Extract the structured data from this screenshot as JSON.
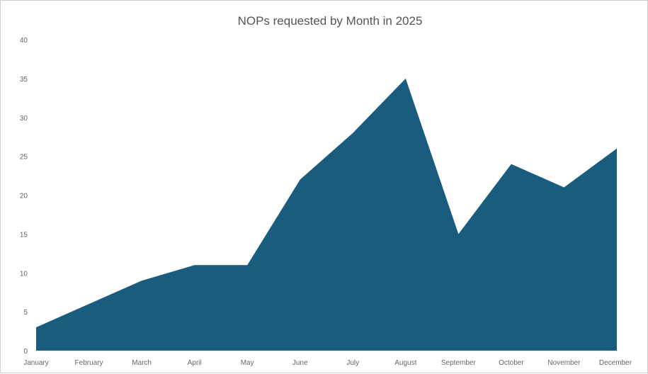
{
  "chart_data": {
    "type": "area",
    "title": "NOPs requested by Month in 2025",
    "xlabel": "",
    "ylabel": "",
    "categories": [
      "January",
      "February",
      "March",
      "April",
      "May",
      "June",
      "July",
      "August",
      "September",
      "October",
      "November",
      "December"
    ],
    "values": [
      3,
      6,
      9,
      11,
      11,
      22,
      28,
      35,
      15,
      24,
      21,
      26
    ],
    "ylim": [
      0,
      40
    ],
    "yticks": [
      "0",
      "5",
      "10",
      "15",
      "20",
      "25",
      "30",
      "35",
      "40"
    ],
    "grid": false,
    "legend": "none",
    "fill_color": "#1a5c7d"
  }
}
